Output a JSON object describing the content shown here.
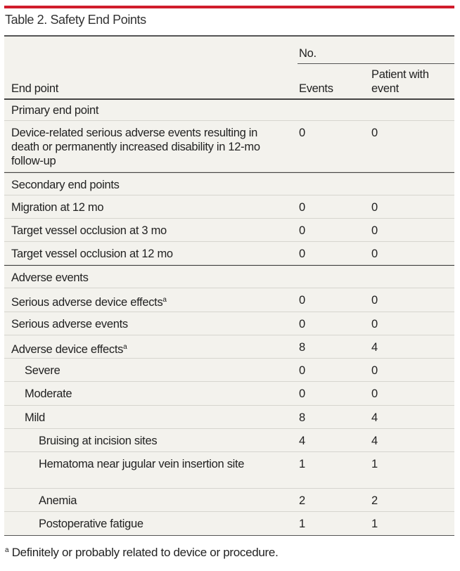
{
  "title": "Table 2. Safety End Points",
  "header": {
    "col0": "End point",
    "group": "No.",
    "col1": "Events",
    "col2": "Patient with event"
  },
  "rows": [
    {
      "label": "Primary end point",
      "section": true
    },
    {
      "label": "Device-related serious adverse events resulting in death or permanently increased disability in 12-mo follow-up",
      "events": "0",
      "patients": "0",
      "indent": 0
    },
    {
      "label": "Secondary end points",
      "section": true
    },
    {
      "label": "Migration at 12 mo",
      "events": "0",
      "patients": "0",
      "indent": 0
    },
    {
      "label": "Target vessel occlusion at 3 mo",
      "events": "0",
      "patients": "0",
      "indent": 0
    },
    {
      "label": "Target vessel occlusion at 12 mo",
      "events": "0",
      "patients": "0",
      "indent": 0
    },
    {
      "label": "Adverse events",
      "section": true
    },
    {
      "label": "Serious adverse device effects",
      "sup": "a",
      "events": "0",
      "patients": "0",
      "indent": 0
    },
    {
      "label": "Serious adverse events",
      "events": "0",
      "patients": "0",
      "indent": 0
    },
    {
      "label": "Adverse device effects",
      "sup": "a",
      "events": "8",
      "patients": "4",
      "indent": 0
    },
    {
      "label": "Severe",
      "events": "0",
      "patients": "0",
      "indent": 1
    },
    {
      "label": "Moderate",
      "events": "0",
      "patients": "0",
      "indent": 1
    },
    {
      "label": "Mild",
      "events": "8",
      "patients": "4",
      "indent": 1
    },
    {
      "label": "Bruising at incision sites",
      "events": "4",
      "patients": "4",
      "indent": 2
    },
    {
      "label": "Hematoma near jugular vein insertion site",
      "events": "1",
      "patients": "1",
      "indent": 2
    },
    {
      "label": "Anemia",
      "events": "2",
      "patients": "2",
      "indent": 2
    },
    {
      "label": "Postoperative fatigue",
      "events": "1",
      "patients": "1",
      "indent": 2
    }
  ],
  "footnote": {
    "mark": "a",
    "text": "Definitely or probably related to device or procedure."
  },
  "colors": {
    "accent": "#d01c2c",
    "table_bg": "#f3f2ed"
  }
}
